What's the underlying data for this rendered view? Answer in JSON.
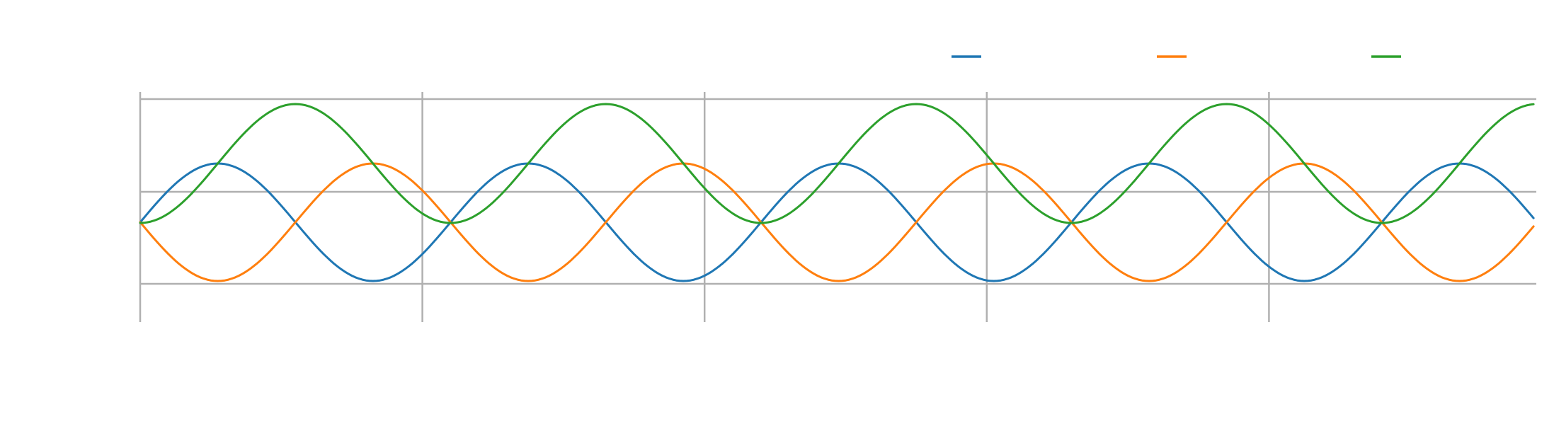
{
  "chart_data": {
    "type": "line",
    "title": "",
    "xlabel": "",
    "ylabel": "",
    "grid": true,
    "legend": {
      "placement": "top-right",
      "entries": [
        {
          "name": "",
          "color": "#1f77b4"
        },
        {
          "name": "",
          "color": "#ff7f0e"
        },
        {
          "name": "",
          "color": "#2ca02c"
        }
      ]
    },
    "x_range": [
      0,
      25
    ],
    "y_range": [
      -1.2,
      2.2
    ],
    "x_gridlines": [
      0,
      5,
      10,
      15,
      20
    ],
    "y_gridlines": [
      -1,
      0,
      1,
      2
    ],
    "tick_labels_visible": false,
    "series": [
      {
        "color": "#1f77b4",
        "form": "sin",
        "amplitude": 0.94,
        "period": 5.5,
        "phase": 0,
        "offset": 0.33,
        "drift": -0.0012
      },
      {
        "color": "#ff7f0e",
        "form": "negsin",
        "amplitude": 0.93,
        "period": 5.5,
        "phase": 0,
        "offset": 0.33,
        "drift": 0.0012
      },
      {
        "color": "#2ca02c",
        "form": "negcos",
        "amplitude": 0.93,
        "period": 5.5,
        "phase": 0,
        "offset": 1.37,
        "drift": 0.0012
      }
    ]
  }
}
